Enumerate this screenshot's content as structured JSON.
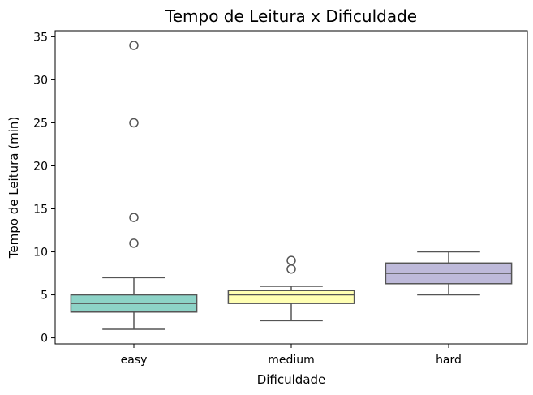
{
  "chart_data": {
    "type": "box",
    "title": "Tempo de Leitura x Dificuldade",
    "xlabel": "Dificuldade",
    "ylabel": "Tempo de Leitura (min)",
    "ylim": [
      -0.7,
      35.7
    ],
    "yticks": [
      "0",
      "5",
      "10",
      "15",
      "20",
      "25",
      "30",
      "35"
    ],
    "categories": [
      "easy",
      "medium",
      "hard"
    ],
    "boxes": [
      {
        "category": "easy",
        "whisker_low": 1,
        "q1": 3,
        "median": 4,
        "q3": 5,
        "whisker_high": 7,
        "outliers": [
          11,
          14,
          25,
          34
        ],
        "color": "#8dd3c7"
      },
      {
        "category": "medium",
        "whisker_low": 2,
        "q1": 4,
        "median": 5,
        "q3": 5.5,
        "whisker_high": 6,
        "outliers": [
          8,
          9
        ],
        "color": "#ffffb3"
      },
      {
        "category": "hard",
        "whisker_low": 5,
        "q1": 6.3,
        "median": 7.5,
        "q3": 8.7,
        "whisker_high": 10,
        "outliers": [],
        "color": "#bebada"
      }
    ],
    "grid": false,
    "legend": "none"
  }
}
